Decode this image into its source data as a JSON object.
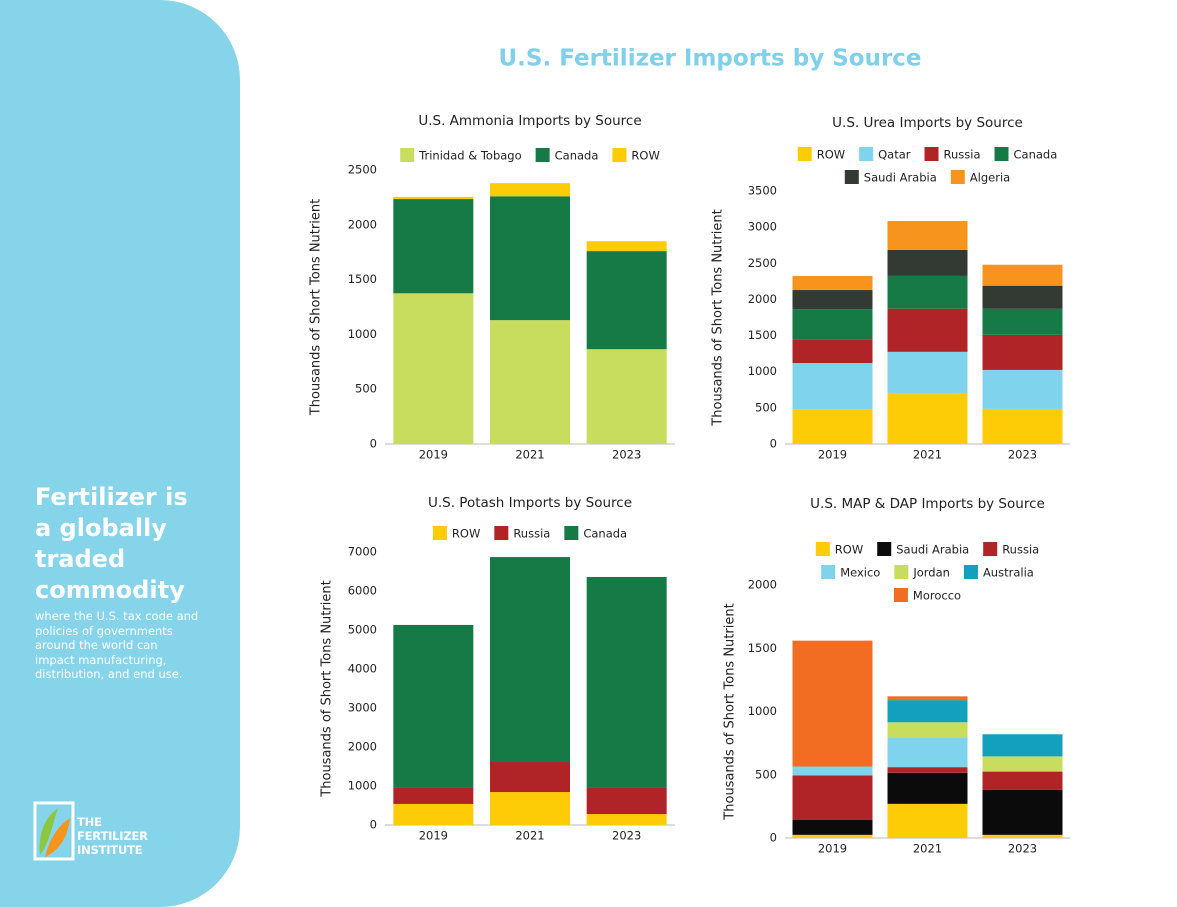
{
  "sidebar": {
    "heading": "Fertilizer is a globally traded commodity",
    "body": "where the U.S. tax code and policies of governments around the world can impact manufacturing, distribution, and end use.",
    "logo": [
      "THE",
      "FERTILIZER",
      "INSTITUTE"
    ]
  },
  "title": "U.S. Fertilizer Imports by Source",
  "chart_data": [
    {
      "type": "bar",
      "stacked": true,
      "title": "U.S. Ammonia Imports by Source",
      "y_label": "Thousands of Short Tons Nutrient",
      "categories": [
        "2019",
        "2021",
        "2023"
      ],
      "ylim": [
        0,
        2500
      ],
      "yticks": [
        0,
        500,
        1000,
        1500,
        2000,
        2500
      ],
      "series": [
        {
          "name": "Trinidad & Tobago",
          "color": "#c8dd5d",
          "values": [
            1375,
            1130,
            865
          ]
        },
        {
          "name": "Canada",
          "color": "#157a45",
          "values": [
            860,
            1130,
            895
          ]
        },
        {
          "name": "ROW",
          "color": "#fecb07",
          "values": [
            20,
            120,
            90
          ]
        }
      ]
    },
    {
      "type": "bar",
      "stacked": true,
      "title": "U.S. Urea Imports by Source",
      "y_label": "Thousands of Short Tons Nutrient",
      "categories": [
        "2019",
        "2021",
        "2023"
      ],
      "ylim": [
        0,
        3500
      ],
      "yticks": [
        0,
        500,
        1000,
        1500,
        2000,
        2500,
        3000,
        3500
      ],
      "series": [
        {
          "name": "ROW",
          "color": "#fecb07",
          "values": [
            480,
            705,
            485
          ]
        },
        {
          "name": "Qatar",
          "color": "#7fd3ec",
          "values": [
            640,
            570,
            540
          ]
        },
        {
          "name": "Russia",
          "color": "#b02327",
          "values": [
            330,
            595,
            485
          ]
        },
        {
          "name": "Canada",
          "color": "#157a45",
          "values": [
            415,
            455,
            360
          ]
        },
        {
          "name": "Saudi Arabia",
          "color": "#333a33",
          "values": [
            265,
            360,
            320
          ]
        },
        {
          "name": "Algeria",
          "color": "#f7941d",
          "values": [
            195,
            400,
            290
          ]
        }
      ]
    },
    {
      "type": "bar",
      "stacked": true,
      "title": "U.S. Potash Imports by Source",
      "y_label": "Thousands of Short Tons Nutrient",
      "categories": [
        "2019",
        "2021",
        "2023"
      ],
      "ylim": [
        0,
        7000
      ],
      "yticks": [
        0,
        1000,
        2000,
        3000,
        4000,
        5000,
        6000,
        7000
      ],
      "series": [
        {
          "name": "ROW",
          "color": "#fecb07",
          "values": [
            540,
            845,
            280
          ]
        },
        {
          "name": "Russia",
          "color": "#b02327",
          "values": [
            410,
            770,
            670
          ]
        },
        {
          "name": "Canada",
          "color": "#157a45",
          "values": [
            4180,
            5255,
            5410
          ]
        }
      ]
    },
    {
      "type": "bar",
      "stacked": true,
      "title": "U.S. MAP & DAP Imports by Source",
      "y_label": "Thousands of Short Tons Nutrient",
      "categories": [
        "2019",
        "2021",
        "2023"
      ],
      "ylim": [
        0,
        2000
      ],
      "yticks": [
        0,
        500,
        1000,
        1500,
        2000
      ],
      "series": [
        {
          "name": "ROW",
          "color": "#fecb07",
          "values": [
            25,
            270,
            25
          ]
        },
        {
          "name": "Saudi Arabia",
          "color": "#0b0b0b",
          "values": [
            120,
            245,
            355
          ]
        },
        {
          "name": "Russia",
          "color": "#b02327",
          "values": [
            350,
            45,
            145
          ]
        },
        {
          "name": "Mexico",
          "color": "#7fd3ec",
          "values": [
            70,
            235,
            0
          ]
        },
        {
          "name": "Jordan",
          "color": "#c8dd5d",
          "values": [
            0,
            120,
            120
          ]
        },
        {
          "name": "Australia",
          "color": "#13a0bf",
          "values": [
            0,
            175,
            175
          ]
        },
        {
          "name": "Morocco",
          "color": "#f26c22",
          "values": [
            995,
            30,
            0
          ]
        }
      ]
    }
  ]
}
